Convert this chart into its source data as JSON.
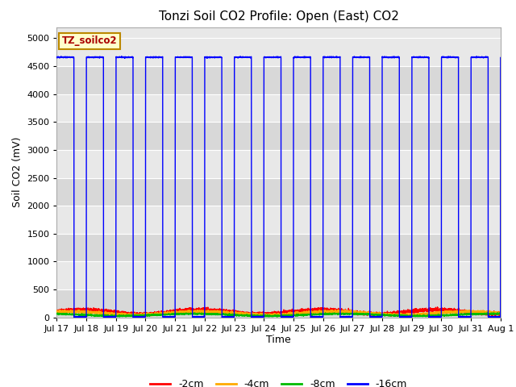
{
  "title": "Tonzi Soil CO2 Profile: Open (East) CO2",
  "ylabel": "Soil CO2 (mV)",
  "xlabel": "Time",
  "legend_label": "TZ_soilco2",
  "ylim": [
    0,
    5200
  ],
  "yticks": [
    0,
    500,
    1000,
    1500,
    2000,
    2500,
    3000,
    3500,
    4000,
    4500,
    5000
  ],
  "series_colors": {
    "-2cm": "#ff0000",
    "-4cm": "#ffaa00",
    "-8cm": "#00bb00",
    "-16cm": "#0000ff"
  },
  "series_labels": [
    "-2cm",
    "-4cm",
    "-8cm",
    "-16cm"
  ],
  "fig_bg_color": "#ffffff",
  "plot_bg_color": "#e8e8e8",
  "grid_color": "#ffffff",
  "high_value_16cm": 4660,
  "low_value_16cm": 10,
  "x_tick_labels": [
    "Jul 17",
    "Jul 18",
    "Jul 19",
    "Jul 20",
    "Jul 21",
    "Jul 22",
    "Jul 23",
    "Jul 24",
    "Jul 25",
    "Jul 26",
    "Jul 27",
    "Jul 28",
    "Jul 29",
    "Jul 30",
    "Jul 31",
    "Aug 1"
  ],
  "title_fontsize": 11,
  "axis_fontsize": 9,
  "tick_fontsize": 8
}
